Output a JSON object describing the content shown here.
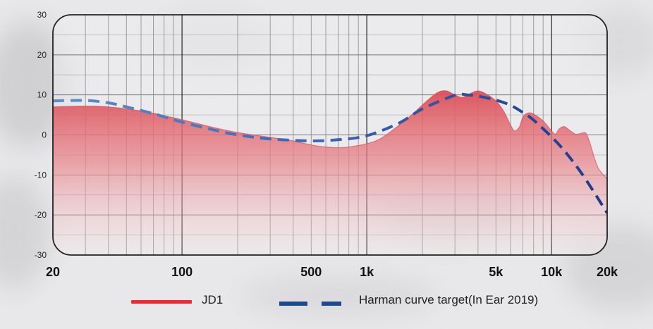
{
  "chart_data": {
    "type": "area",
    "x_scale": "log",
    "y_scale": "linear",
    "ylim": [
      -30,
      30
    ],
    "xlim": [
      20,
      20000
    ],
    "grid": true,
    "x_tick_labels": [
      {
        "value": 20,
        "label": "20"
      },
      {
        "value": 100,
        "label": "100"
      },
      {
        "value": 500,
        "label": "500"
      },
      {
        "value": 1000,
        "label": "1k"
      },
      {
        "value": 5000,
        "label": "5k"
      },
      {
        "value": 10000,
        "label": "10k"
      },
      {
        "value": 20000,
        "label": "20k"
      }
    ],
    "y_ticks": [
      30,
      20,
      10,
      0,
      -10,
      -20,
      -30
    ],
    "legend_position": "bottom",
    "series": [
      {
        "name": "JD1",
        "style": "filled-area",
        "color": "#e0515a",
        "points": [
          [
            20,
            7
          ],
          [
            30,
            7.2
          ],
          [
            40,
            7.0
          ],
          [
            60,
            6.0
          ],
          [
            80,
            4.8
          ],
          [
            100,
            3.8
          ],
          [
            150,
            1.8
          ],
          [
            200,
            0.6
          ],
          [
            300,
            -0.6
          ],
          [
            400,
            -1.5
          ],
          [
            500,
            -2.5
          ],
          [
            600,
            -3.0
          ],
          [
            700,
            -3.2
          ],
          [
            800,
            -3.0
          ],
          [
            1000,
            -2.2
          ],
          [
            1200,
            -0.8
          ],
          [
            1500,
            2.5
          ],
          [
            1800,
            5.5
          ],
          [
            2000,
            7.5
          ],
          [
            2400,
            10.5
          ],
          [
            2700,
            11.0
          ],
          [
            3000,
            10.0
          ],
          [
            3300,
            9.4
          ],
          [
            3700,
            10.5
          ],
          [
            4000,
            11.0
          ],
          [
            4400,
            10.3
          ],
          [
            5000,
            8.5
          ],
          [
            5500,
            6.0
          ],
          [
            6000,
            2.5
          ],
          [
            6300,
            1.0
          ],
          [
            6700,
            2.0
          ],
          [
            7000,
            4.5
          ],
          [
            7500,
            5.5
          ],
          [
            8000,
            5.2
          ],
          [
            9000,
            3.5
          ],
          [
            10000,
            1.0
          ],
          [
            10500,
            0.2
          ],
          [
            11000,
            1.5
          ],
          [
            11700,
            2.1
          ],
          [
            12500,
            1.2
          ],
          [
            13500,
            0.2
          ],
          [
            14500,
            0.4
          ],
          [
            15300,
            0.5
          ],
          [
            16000,
            -1.5
          ],
          [
            17000,
            -5.5
          ],
          [
            18000,
            -8.5
          ],
          [
            20000,
            -11.0
          ]
        ]
      },
      {
        "name": "Harman curve target(In Ear 2019)",
        "style": "dashed-line",
        "color_start": "#5b8fc9",
        "color_end": "#1d3a8c",
        "points": [
          [
            20,
            8.5
          ],
          [
            30,
            8.6
          ],
          [
            40,
            8.0
          ],
          [
            50,
            7.0
          ],
          [
            70,
            5.3
          ],
          [
            100,
            3.2
          ],
          [
            150,
            1.2
          ],
          [
            200,
            0.0
          ],
          [
            300,
            -1.0
          ],
          [
            500,
            -1.5
          ],
          [
            700,
            -1.2
          ],
          [
            1000,
            -0.2
          ],
          [
            1500,
            3.0
          ],
          [
            2000,
            6.5
          ],
          [
            3000,
            9.9
          ],
          [
            3500,
            10.0
          ],
          [
            4000,
            9.7
          ],
          [
            5000,
            8.7
          ],
          [
            6000,
            7.4
          ],
          [
            7000,
            5.6
          ],
          [
            8000,
            3.7
          ],
          [
            10000,
            -0.5
          ],
          [
            12000,
            -4.5
          ],
          [
            15000,
            -10.5
          ],
          [
            20000,
            -19.5
          ]
        ]
      }
    ]
  },
  "legend": {
    "jd1_label": "JD1",
    "harman_label": "Harman curve target(In Ear 2019)"
  }
}
